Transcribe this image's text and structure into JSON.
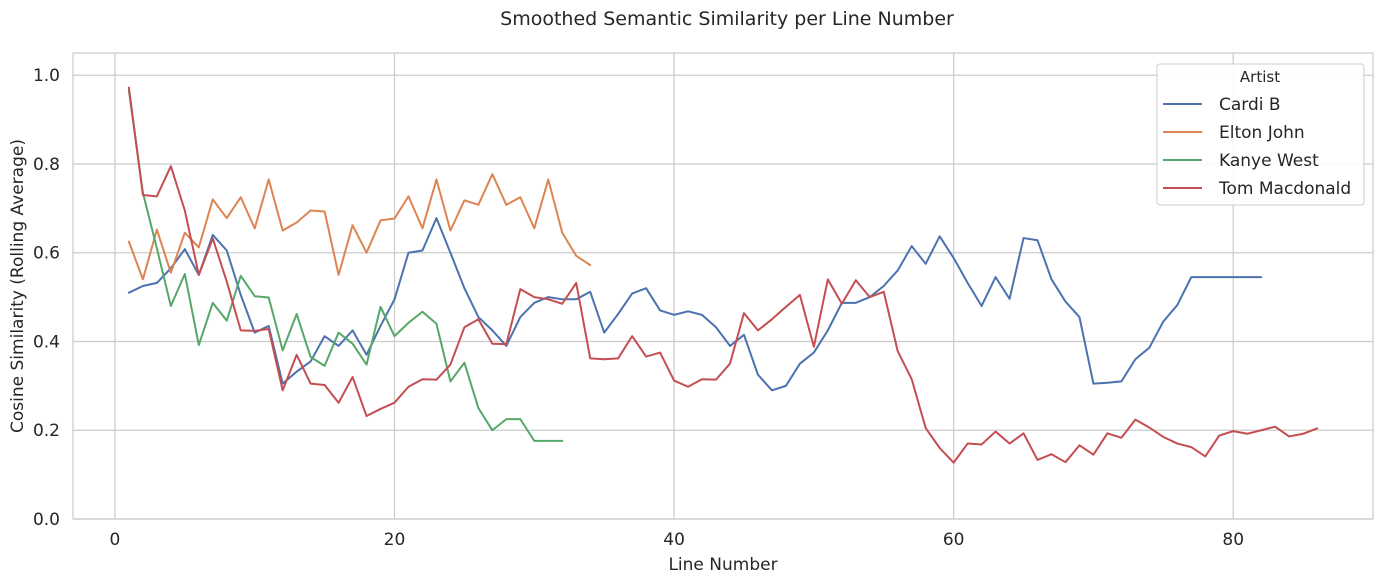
{
  "chart_data": {
    "type": "line",
    "title": "Smoothed Semantic Similarity per Line Number",
    "xlabel": "Line Number",
    "ylabel": "Cosine Similarity (Rolling Average)",
    "xlim": [
      -3,
      90
    ],
    "ylim": [
      0,
      1.05
    ],
    "x_ticks": [
      0,
      20,
      40,
      60,
      80
    ],
    "y_ticks": [
      0.0,
      0.2,
      0.4,
      0.6,
      0.8,
      1.0
    ],
    "x_tick_labels": [
      "0",
      "20",
      "40",
      "60",
      "80"
    ],
    "y_tick_labels": [
      "0.0",
      "0.2",
      "0.4",
      "0.6",
      "0.8",
      "1.0"
    ],
    "grid": true,
    "legend_title": "Artist",
    "legend_position": "top-right",
    "series": [
      {
        "name": "Cardi B",
        "color": "#4c72b0",
        "x_start": 1,
        "values": [
          0.51,
          0.525,
          0.532,
          0.565,
          0.608,
          0.55,
          0.64,
          0.605,
          0.505,
          0.42,
          0.435,
          0.305,
          0.332,
          0.355,
          0.412,
          0.39,
          0.425,
          0.37,
          0.435,
          0.495,
          0.6,
          0.605,
          0.678,
          0.6,
          0.52,
          0.455,
          0.425,
          0.39,
          0.455,
          0.487,
          0.5,
          0.495,
          0.495,
          0.512,
          0.42,
          0.462,
          0.508,
          0.52,
          0.47,
          0.46,
          0.468,
          0.46,
          0.432,
          0.39,
          0.415,
          0.325,
          0.29,
          0.3,
          0.35,
          0.375,
          0.425,
          0.487,
          0.487,
          0.5,
          0.525,
          0.56,
          0.615,
          0.575,
          0.637,
          0.588,
          0.532,
          0.48,
          0.545,
          0.496,
          0.633,
          0.628,
          0.54,
          0.49,
          0.455,
          0.305,
          0.307,
          0.31,
          0.36,
          0.386,
          0.445,
          0.482,
          0.545,
          0.545,
          0.545,
          0.545,
          0.545,
          0.545
        ]
      },
      {
        "name": "Elton John",
        "color": "#dd8452",
        "x_start": 1,
        "values": [
          0.625,
          0.54,
          0.652,
          0.555,
          0.645,
          0.612,
          0.72,
          0.678,
          0.725,
          0.655,
          0.765,
          0.65,
          0.668,
          0.695,
          0.693,
          0.55,
          0.662,
          0.6,
          0.673,
          0.677,
          0.727,
          0.655,
          0.765,
          0.65,
          0.718,
          0.708,
          0.777,
          0.708,
          0.725,
          0.655,
          0.765,
          0.645,
          0.593,
          0.572
        ]
      },
      {
        "name": "Kanye West",
        "color": "#55a868",
        "x_start": 1,
        "values": [
          0.965,
          0.735,
          0.61,
          0.48,
          0.552,
          0.392,
          0.487,
          0.447,
          0.548,
          0.502,
          0.499,
          0.38,
          0.462,
          0.365,
          0.345,
          0.42,
          0.395,
          0.348,
          0.478,
          0.412,
          0.442,
          0.467,
          0.44,
          0.31,
          0.352,
          0.25,
          0.2,
          0.225,
          0.225,
          0.176,
          0.176,
          0.176
        ]
      },
      {
        "name": "Tom Macdonald",
        "color": "#c44e52",
        "x_start": 1,
        "values": [
          0.972,
          0.73,
          0.727,
          0.795,
          0.695,
          0.55,
          0.632,
          0.535,
          0.425,
          0.424,
          0.428,
          0.29,
          0.37,
          0.305,
          0.302,
          0.262,
          0.32,
          0.232,
          0.248,
          0.262,
          0.298,
          0.315,
          0.314,
          0.348,
          0.432,
          0.45,
          0.395,
          0.394,
          0.518,
          0.5,
          0.495,
          0.485,
          0.532,
          0.362,
          0.36,
          0.362,
          0.412,
          0.366,
          0.375,
          0.312,
          0.298,
          0.315,
          0.314,
          0.35,
          0.464,
          0.425,
          0.45,
          0.478,
          0.505,
          0.388,
          0.54,
          0.485,
          0.538,
          0.5,
          0.512,
          0.378,
          0.315,
          0.205,
          0.16,
          0.127,
          0.17,
          0.168,
          0.197,
          0.17,
          0.193,
          0.133,
          0.146,
          0.128,
          0.166,
          0.145,
          0.193,
          0.183,
          0.224,
          0.206,
          0.185,
          0.17,
          0.162,
          0.141,
          0.188,
          0.198,
          0.192,
          0.2,
          0.208,
          0.186,
          0.192,
          0.204
        ]
      }
    ]
  }
}
